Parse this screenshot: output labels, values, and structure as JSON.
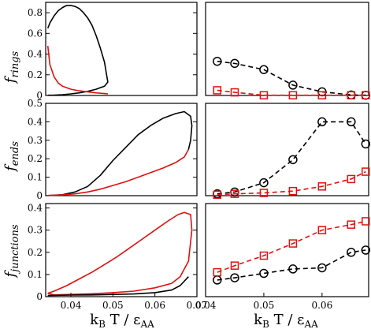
{
  "colors": {
    "black": "#000000",
    "red": "#e01010"
  },
  "chart_data": [
    {
      "panel": "rings-theory",
      "type": "line",
      "ylabel": "f_rings",
      "xlim": [
        0.034,
        0.07
      ],
      "ylim": [
        0,
        0.9
      ],
      "yticks": [
        "0",
        "0.2",
        "0.4",
        "0.6",
        "0.8"
      ],
      "xticks": [],
      "series": [
        {
          "color": "black",
          "x": [
            0.0345,
            0.035,
            0.036,
            0.037,
            0.038,
            0.039,
            0.04,
            0.041,
            0.042,
            0.043,
            0.044,
            0.045,
            0.046,
            0.047,
            0.048,
            0.0485,
            0.0488,
            0.048,
            0.046,
            0.044,
            0.042,
            0.04,
            0.038,
            0.036,
            0.0345
          ],
          "y": [
            0.65,
            0.7,
            0.77,
            0.82,
            0.85,
            0.87,
            0.87,
            0.86,
            0.84,
            0.8,
            0.75,
            0.68,
            0.58,
            0.46,
            0.32,
            0.2,
            0.13,
            0.09,
            0.06,
            0.04,
            0.025,
            0.015,
            0.008,
            0.004,
            0.002
          ]
        },
        {
          "color": "red",
          "x": [
            0.0345,
            0.035,
            0.036,
            0.037,
            0.038,
            0.04,
            0.042,
            0.044,
            0.046,
            0.048,
            0.0488
          ],
          "y": [
            0.48,
            0.3,
            0.18,
            0.12,
            0.09,
            0.06,
            0.045,
            0.035,
            0.025,
            0.018,
            0.015
          ]
        }
      ]
    },
    {
      "panel": "rings-sim",
      "type": "line",
      "xlim": [
        0.04,
        0.068
      ],
      "ylim": [
        0,
        0.9
      ],
      "yticks": [],
      "xticks": [],
      "series": [
        {
          "color": "black",
          "marker": "circle",
          "x": [
            0.042,
            0.045,
            0.05,
            0.055,
            0.06,
            0.065,
            0.0675
          ],
          "y": [
            0.33,
            0.31,
            0.25,
            0.1,
            0.035,
            0.005,
            0.002
          ]
        },
        {
          "color": "red",
          "marker": "square",
          "x": [
            0.042,
            0.045,
            0.05,
            0.055,
            0.06,
            0.065,
            0.0675
          ],
          "y": [
            0.05,
            0.03,
            0.002,
            0.002,
            0.002,
            0.002,
            0.002
          ]
        }
      ]
    },
    {
      "panel": "ends-theory",
      "type": "line",
      "ylabel": "f_ends",
      "xlim": [
        0.034,
        0.07
      ],
      "ylim": [
        0,
        0.5
      ],
      "yticks": [
        "0",
        "0.1",
        "0.2",
        "0.3",
        "0.4",
        "0.5"
      ],
      "xticks": [],
      "series": [
        {
          "color": "black",
          "x": [
            0.0345,
            0.038,
            0.041,
            0.044,
            0.047,
            0.05,
            0.053,
            0.056,
            0.059,
            0.062,
            0.065,
            0.067,
            0.0685,
            0.0688,
            0.0685,
            0.068
          ],
          "y": [
            0.001,
            0.005,
            0.02,
            0.05,
            0.11,
            0.19,
            0.26,
            0.33,
            0.38,
            0.42,
            0.445,
            0.455,
            0.43,
            0.38,
            0.3,
            0.25
          ]
        },
        {
          "color": "red",
          "x": [
            0.0345,
            0.038,
            0.041,
            0.044,
            0.047,
            0.05,
            0.053,
            0.056,
            0.059,
            0.062,
            0.065,
            0.067,
            0.068
          ],
          "y": [
            0.001,
            0.004,
            0.01,
            0.02,
            0.035,
            0.055,
            0.075,
            0.1,
            0.125,
            0.15,
            0.18,
            0.21,
            0.25
          ]
        }
      ]
    },
    {
      "panel": "ends-sim",
      "type": "line",
      "xlim": [
        0.04,
        0.068
      ],
      "ylim": [
        0,
        0.5
      ],
      "yticks": [],
      "xticks": [],
      "series": [
        {
          "color": "black",
          "marker": "circle",
          "x": [
            0.042,
            0.045,
            0.05,
            0.055,
            0.06,
            0.065,
            0.0675
          ],
          "y": [
            0.01,
            0.02,
            0.07,
            0.195,
            0.4,
            0.4,
            0.28
          ]
        },
        {
          "color": "red",
          "marker": "square",
          "x": [
            0.042,
            0.045,
            0.05,
            0.055,
            0.06,
            0.065,
            0.0675
          ],
          "y": [
            0.005,
            0.01,
            0.015,
            0.025,
            0.05,
            0.09,
            0.13
          ]
        }
      ]
    },
    {
      "panel": "junctions-theory",
      "type": "line",
      "ylabel": "f_junctions",
      "xlabel": "kB T / εAA",
      "xlim": [
        0.034,
        0.07
      ],
      "ylim": [
        0,
        0.42
      ],
      "yticks": [
        "0",
        "0.1",
        "0.2",
        "0.3",
        "0.4"
      ],
      "xticks": [
        "0.04",
        "0.05",
        "0.06",
        "0.07"
      ],
      "series": [
        {
          "color": "red",
          "x": [
            0.0345,
            0.036,
            0.039,
            0.042,
            0.045,
            0.048,
            0.051,
            0.054,
            0.057,
            0.06,
            0.063,
            0.0655,
            0.067,
            0.0685,
            0.0688,
            0.068,
            0.066,
            0.064,
            0.06,
            0.055,
            0.05,
            0.045,
            0.04,
            0.036,
            0.0345
          ],
          "y": [
            0.015,
            0.025,
            0.05,
            0.08,
            0.11,
            0.145,
            0.18,
            0.22,
            0.26,
            0.3,
            0.34,
            0.37,
            0.38,
            0.37,
            0.3,
            0.16,
            0.09,
            0.06,
            0.04,
            0.025,
            0.018,
            0.013,
            0.01,
            0.008,
            0.015
          ]
        },
        {
          "color": "black",
          "x": [
            0.0345,
            0.04,
            0.045,
            0.05,
            0.055,
            0.06,
            0.064,
            0.066,
            0.068
          ],
          "y": [
            0.005,
            0.007,
            0.008,
            0.01,
            0.012,
            0.018,
            0.03,
            0.05,
            0.09
          ]
        }
      ]
    },
    {
      "panel": "junctions-sim",
      "type": "line",
      "xlabel": "kB T / εAA",
      "xlim": [
        0.04,
        0.068
      ],
      "ylim": [
        0,
        0.42
      ],
      "yticks": [],
      "xticks": [
        "0.04",
        "0.05",
        "0.06"
      ],
      "series": [
        {
          "color": "black",
          "marker": "circle",
          "x": [
            0.042,
            0.045,
            0.05,
            0.055,
            0.06,
            0.065,
            0.0675
          ],
          "y": [
            0.075,
            0.085,
            0.105,
            0.125,
            0.13,
            0.2,
            0.21
          ]
        },
        {
          "color": "red",
          "marker": "square",
          "x": [
            0.042,
            0.045,
            0.05,
            0.055,
            0.06,
            0.065,
            0.0675
          ],
          "y": [
            0.11,
            0.14,
            0.185,
            0.24,
            0.3,
            0.325,
            0.34
          ]
        }
      ]
    }
  ],
  "labels": {
    "frings_f": "f",
    "frings_sub": "rings",
    "fends_f": "f",
    "fends_sub": "ends",
    "fjunc_f": "f",
    "fjunc_sub": "junctions",
    "xlab_k": "k",
    "xlab_B": "B",
    "xlab_T": " T / ε",
    "xlab_AA": "AA"
  }
}
